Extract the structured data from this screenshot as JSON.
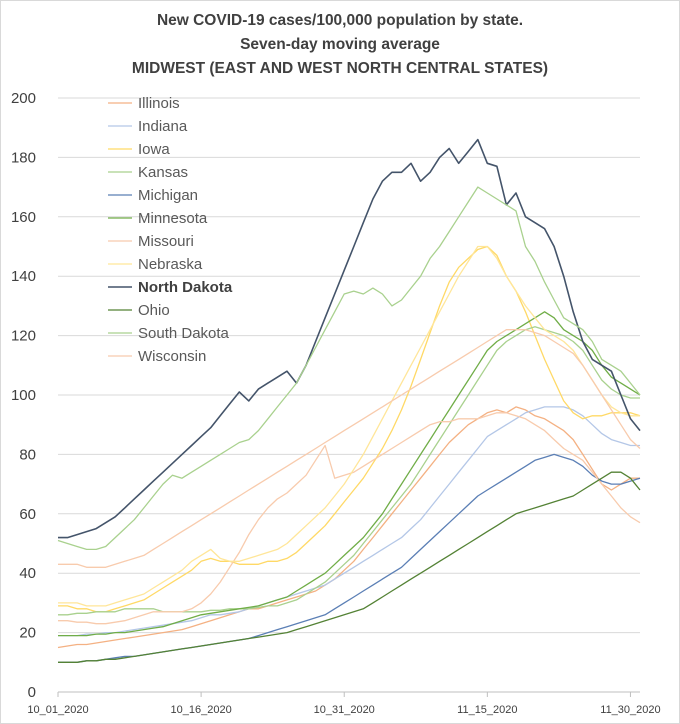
{
  "chart_data": {
    "type": "line",
    "title": "New COVID-19 cases/100,000 population by state.",
    "subtitle": "Seven-day moving average",
    "subtitle2": "MIDWEST (EAST AND WEST NORTH CENTRAL STATES)",
    "xlabel": "",
    "ylabel": "",
    "ylim": [
      0,
      200
    ],
    "yticks": [
      0,
      20,
      40,
      60,
      80,
      100,
      120,
      140,
      160,
      180,
      200
    ],
    "x_count": 62,
    "xticks": [
      {
        "index": 0,
        "label": "10_01_2020"
      },
      {
        "index": 15,
        "label": "10_16_2020"
      },
      {
        "index": 30,
        "label": "10_31_2020"
      },
      {
        "index": 45,
        "label": "11_15_2020"
      },
      {
        "index": 60,
        "label": "11_30_2020"
      }
    ],
    "grid": true,
    "legend_position": "top-left",
    "series": [
      {
        "name": "Illinois",
        "color": "#f4b183",
        "bold": false,
        "values": [
          15,
          15.5,
          16,
          16,
          16.5,
          17,
          17.5,
          18,
          18.5,
          19,
          19.5,
          20,
          20.5,
          21,
          22,
          23,
          24,
          25,
          26,
          27,
          28,
          28,
          29,
          30,
          31,
          32,
          33,
          34,
          36,
          38,
          41,
          44,
          48,
          52,
          56,
          60,
          64,
          68,
          72,
          76,
          80,
          84,
          87,
          90,
          92,
          94,
          95,
          94,
          96,
          95,
          93,
          92,
          90,
          88,
          85,
          80,
          75,
          70,
          68,
          70,
          72,
          72
        ]
      },
      {
        "name": "Indiana",
        "color": "#b4c7e7",
        "bold": false,
        "values": [
          19,
          19,
          19,
          19.5,
          19.5,
          20,
          20,
          20.5,
          21,
          21.5,
          22,
          22.5,
          23,
          23.5,
          24,
          25,
          26,
          26,
          26.5,
          27,
          28,
          29,
          30,
          31,
          32,
          33,
          34,
          35,
          36,
          38,
          40,
          42,
          44,
          46,
          48,
          50,
          52,
          55,
          58,
          62,
          66,
          70,
          74,
          78,
          82,
          86,
          88,
          90,
          92,
          94,
          95,
          96,
          96,
          96,
          95,
          93,
          90,
          87,
          85,
          84,
          83,
          83
        ]
      },
      {
        "name": "Iowa",
        "color": "#ffd966",
        "bold": false,
        "values": [
          29,
          29,
          28,
          28,
          27,
          27,
          28,
          29,
          30,
          31,
          33,
          35,
          37,
          39,
          41,
          44,
          45,
          44,
          44,
          43,
          43,
          43,
          44,
          44,
          45,
          47,
          50,
          53,
          56,
          60,
          64,
          68,
          72,
          77,
          82,
          88,
          95,
          103,
          112,
          121,
          130,
          138,
          143,
          146,
          149,
          150,
          147,
          140,
          135,
          128,
          120,
          112,
          105,
          98,
          94,
          92,
          93,
          93,
          94,
          94,
          94,
          93
        ]
      },
      {
        "name": "Kansas",
        "color": "#a9d18e",
        "bold": false,
        "values": [
          26,
          26,
          26.5,
          26.5,
          27,
          27,
          27,
          28,
          28,
          28,
          28,
          27,
          27,
          27,
          27,
          27,
          27.5,
          27.5,
          28,
          28,
          28,
          28.5,
          29,
          29,
          30,
          31,
          33,
          35,
          37,
          40,
          43,
          46,
          50,
          54,
          58,
          62,
          66,
          70,
          75,
          80,
          85,
          90,
          95,
          100,
          105,
          110,
          115,
          118,
          120,
          122,
          123,
          122,
          121,
          120,
          118,
          115,
          110,
          105,
          102,
          100,
          99,
          99
        ]
      },
      {
        "name": "Michigan",
        "color": "#5b7fb5",
        "bold": false,
        "values": [
          10,
          10,
          10,
          10.5,
          10.5,
          11,
          11.5,
          12,
          12,
          12.5,
          13,
          13.5,
          14,
          14.5,
          15,
          15.5,
          16,
          16.5,
          17,
          17.5,
          18,
          19,
          20,
          21,
          22,
          23,
          24,
          25,
          26,
          28,
          30,
          32,
          34,
          36,
          38,
          40,
          42,
          45,
          48,
          51,
          54,
          57,
          60,
          63,
          66,
          68,
          70,
          72,
          74,
          76,
          78,
          79,
          80,
          79,
          78,
          76,
          73,
          71,
          70,
          70,
          71,
          72
        ]
      },
      {
        "name": "Minnesota",
        "color": "#70ad47",
        "bold": false,
        "values": [
          19,
          19,
          19,
          19,
          19.5,
          19.5,
          20,
          20,
          20.5,
          21,
          21.5,
          22,
          23,
          24,
          25,
          26,
          26.5,
          27,
          27.5,
          28,
          28.5,
          29,
          30,
          31,
          32,
          34,
          36,
          38,
          40,
          43,
          46,
          49,
          52,
          56,
          60,
          65,
          70,
          75,
          80,
          85,
          90,
          95,
          100,
          105,
          110,
          115,
          118,
          120,
          122,
          124,
          126,
          128,
          126,
          122,
          120,
          118,
          115,
          110,
          106,
          104,
          102,
          100
        ]
      },
      {
        "name": "Missouri",
        "color": "#f8cbad",
        "bold": false,
        "values": [
          24,
          24,
          23.5,
          23.5,
          23,
          23,
          23.5,
          24,
          25,
          26,
          27,
          27,
          27,
          27,
          28,
          30,
          33,
          37,
          42,
          47,
          53,
          58,
          62,
          65,
          67,
          70,
          73,
          78,
          83,
          72,
          73,
          74,
          76,
          78,
          80,
          82,
          84,
          86,
          88,
          90,
          91,
          91,
          92,
          92,
          92,
          93,
          94,
          94,
          93,
          92,
          90,
          88,
          85,
          82,
          80,
          78,
          74,
          70,
          66,
          62,
          59,
          57
        ]
      },
      {
        "name": "Nebraska",
        "color": "#ffe699",
        "bold": false,
        "values": [
          30,
          30,
          30,
          29,
          29,
          29,
          30,
          31,
          32,
          33,
          35,
          37,
          39,
          41,
          44,
          46,
          48,
          45,
          44,
          44,
          45,
          46,
          47,
          48,
          50,
          53,
          56,
          59,
          62,
          66,
          70,
          75,
          80,
          86,
          92,
          98,
          104,
          110,
          116,
          122,
          128,
          134,
          140,
          145,
          150,
          150,
          146,
          140,
          135,
          130,
          126,
          122,
          120,
          118,
          115,
          110,
          105,
          100,
          96,
          94,
          93,
          93
        ]
      },
      {
        "name": "North Dakota",
        "color": "#44546a",
        "bold": true,
        "values": [
          52,
          52,
          53,
          54,
          55,
          57,
          59,
          62,
          65,
          68,
          71,
          74,
          77,
          80,
          83,
          86,
          89,
          93,
          97,
          101,
          98,
          102,
          104,
          106,
          108,
          104,
          110,
          118,
          126,
          134,
          142,
          150,
          158,
          166,
          172,
          175,
          175,
          178,
          172,
          175,
          180,
          183,
          178,
          182,
          186,
          178,
          177,
          164,
          168,
          160,
          158,
          156,
          150,
          140,
          128,
          118,
          112,
          110,
          108,
          100,
          92,
          88
        ]
      },
      {
        "name": "Ohio",
        "color": "#548235",
        "bold": false,
        "values": [
          10,
          10,
          10,
          10.5,
          10.5,
          11,
          11,
          11.5,
          12,
          12.5,
          13,
          13.5,
          14,
          14.5,
          15,
          15.5,
          16,
          16.5,
          17,
          17.5,
          18,
          18.5,
          19,
          19.5,
          20,
          21,
          22,
          23,
          24,
          25,
          26,
          27,
          28,
          30,
          32,
          34,
          36,
          38,
          40,
          42,
          44,
          46,
          48,
          50,
          52,
          54,
          56,
          58,
          60,
          61,
          62,
          63,
          64,
          65,
          66,
          68,
          70,
          72,
          74,
          74,
          72,
          68
        ]
      },
      {
        "name": "South Dakota",
        "color": "#a9d18e",
        "bold": false,
        "values": [
          51,
          50,
          49,
          48,
          48,
          49,
          52,
          55,
          58,
          62,
          66,
          70,
          73,
          72,
          74,
          76,
          78,
          80,
          82,
          84,
          85,
          88,
          92,
          96,
          100,
          104,
          110,
          116,
          122,
          128,
          134,
          135,
          134,
          136,
          134,
          130,
          132,
          136,
          140,
          146,
          150,
          155,
          160,
          165,
          170,
          168,
          166,
          164,
          162,
          150,
          145,
          138,
          132,
          126,
          124,
          122,
          118,
          112,
          110,
          108,
          104,
          100
        ]
      },
      {
        "name": "Wisconsin",
        "color": "#f8cbad",
        "bold": false,
        "values": [
          43,
          43,
          43,
          42,
          42,
          42,
          43,
          44,
          45,
          46,
          48,
          50,
          52,
          54,
          56,
          58,
          60,
          62,
          64,
          66,
          68,
          70,
          72,
          74,
          76,
          78,
          80,
          82,
          84,
          86,
          88,
          90,
          92,
          94,
          96,
          98,
          100,
          102,
          104,
          106,
          108,
          110,
          112,
          114,
          116,
          118,
          120,
          122,
          122,
          122,
          121,
          120,
          118,
          116,
          114,
          110,
          105,
          100,
          95,
          90,
          85,
          82
        ]
      }
    ]
  }
}
